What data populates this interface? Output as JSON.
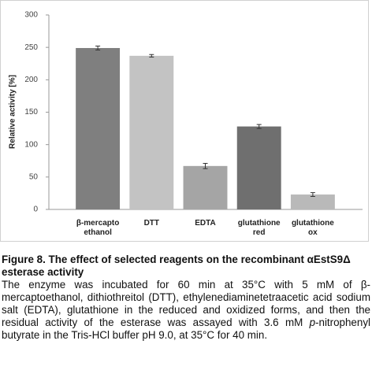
{
  "chart_data": {
    "type": "bar",
    "y_label": "Relative activity [%]",
    "categories": [
      "β-mercapto ethanol",
      "DTT",
      "EDTA",
      "glutathione red",
      "glutathione ox"
    ],
    "values": [
      249,
      237,
      67,
      128,
      23
    ],
    "errors": [
      3,
      2,
      4,
      3,
      3
    ],
    "colors": [
      "#7f7f7f",
      "#c3c3c3",
      "#a5a5a5",
      "#6f6f6f",
      "#b9b9b9"
    ],
    "ylim": [
      0,
      300
    ],
    "yticks": [
      0,
      50,
      100,
      150,
      200,
      250,
      300
    ],
    "grid": false
  },
  "caption": {
    "title": "Figure 8. The effect of selected reagents on the recombinant αEstS9Δ esterase activity",
    "body": [
      "The enzyme was incubated for 60 min at 35°C with 5 mM of β-mercaptoethanol, dithiothreitol (DTT), ethylenediaminetet­raacetic acid sodium salt (EDTA), glutathione in the reduced and oxidized forms, and then the residual activity of the esterase was assayed with 3.6 mM ",
      "p",
      "-nitrophenyl butyrate in the Tris-HCl buffer pH 9.0, at 35°C for 40 min."
    ]
  }
}
